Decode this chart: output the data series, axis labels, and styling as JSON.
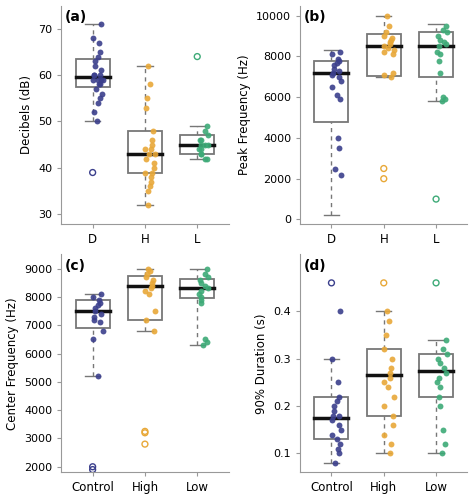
{
  "panel_a": {
    "title": "(a)",
    "ylabel": "Decibels (dB)",
    "xlabel_ticks": [
      "D",
      "H",
      "L"
    ],
    "ylim": [
      28,
      75
    ],
    "yticks": [
      30,
      40,
      50,
      60,
      70
    ],
    "groups": {
      "D": {
        "color": "#3B3F8C",
        "points": [
          71,
          68,
          67,
          65,
          64,
          63,
          62,
          61,
          60,
          60,
          60,
          59,
          59,
          59,
          59,
          58,
          58,
          57,
          56,
          55,
          54,
          52,
          50
        ],
        "q1": 57.5,
        "median": 59.5,
        "q3": 63.5,
        "whisker_low": 50,
        "whisker_high": 71,
        "outliers_low": [
          39
        ],
        "outliers_high": []
      },
      "H": {
        "color": "#E8A838",
        "points": [
          62,
          58,
          55,
          53,
          48,
          46,
          45,
          44,
          44,
          43,
          43,
          42,
          41,
          40,
          39,
          39,
          38,
          37,
          36,
          35,
          32
        ],
        "q1": 39,
        "median": 43,
        "q3": 48,
        "whisker_low": 32,
        "whisker_high": 62,
        "outliers_low": [],
        "outliers_high": []
      },
      "L": {
        "color": "#3DAA77",
        "points": [
          49,
          48,
          47,
          46,
          46,
          45,
          45,
          45,
          44,
          44,
          43,
          43,
          42,
          42
        ],
        "q1": 43,
        "median": 45,
        "q3": 47,
        "whisker_low": 42,
        "whisker_high": 49,
        "outliers_low": [],
        "outliers_high": [
          64
        ]
      }
    }
  },
  "panel_b": {
    "title": "(b)",
    "ylabel": "Peak Frequency (Hz)",
    "xlabel_ticks": [
      "D",
      "H",
      "L"
    ],
    "ylim": [
      -200,
      10500
    ],
    "yticks": [
      0,
      2000,
      4000,
      6000,
      8000,
      10000
    ],
    "groups": {
      "D": {
        "color": "#3B3F8C",
        "points": [
          8200,
          8100,
          7900,
          7800,
          7700,
          7600,
          7400,
          7300,
          7200,
          7100,
          7000,
          6800,
          6500,
          6100,
          5900,
          4000,
          3500,
          2500,
          2200
        ],
        "q1": 4800,
        "median": 7200,
        "q3": 7800,
        "whisker_low": 200,
        "whisker_high": 8300,
        "outliers_low": [],
        "outliers_high": []
      },
      "H": {
        "color": "#E8A838",
        "points": [
          10000,
          9500,
          9200,
          9000,
          8900,
          8800,
          8700,
          8600,
          8500,
          8400,
          8300,
          8200,
          8100,
          7200,
          7100,
          7000
        ],
        "q1": 7050,
        "median": 8500,
        "q3": 9100,
        "whisker_low": 7000,
        "whisker_high": 10000,
        "outliers_low": [
          2000,
          2500
        ],
        "outliers_high": []
      },
      "L": {
        "color": "#3DAA77",
        "points": [
          9500,
          9300,
          9200,
          9000,
          8800,
          8700,
          8600,
          8500,
          8200,
          8100,
          7800,
          7200,
          6000,
          5900,
          5800
        ],
        "q1": 7000,
        "median": 8500,
        "q3": 9200,
        "whisker_low": 5800,
        "whisker_high": 9600,
        "outliers_low": [
          1000
        ],
        "outliers_high": []
      }
    }
  },
  "panel_c": {
    "title": "(c)",
    "ylabel": "Center Frequency (Hz)",
    "xlabel_ticks": [
      "Control",
      "High",
      "Low"
    ],
    "ylim": [
      1800,
      9500
    ],
    "yticks": [
      2000,
      3000,
      4000,
      5000,
      6000,
      7000,
      8000,
      9000
    ],
    "groups": {
      "Control": {
        "color": "#3B3F8C",
        "points": [
          8100,
          8000,
          7900,
          7800,
          7700,
          7600,
          7500,
          7400,
          7300,
          7200,
          7100,
          6800,
          6500,
          5200
        ],
        "q1": 6900,
        "median": 7500,
        "q3": 7900,
        "whisker_low": 5200,
        "whisker_high": 8100,
        "outliers_low": [
          2000,
          1900
        ],
        "outliers_high": []
      },
      "High": {
        "color": "#E8A838",
        "points": [
          9000,
          8900,
          8800,
          8700,
          8600,
          8500,
          8400,
          8300,
          8200,
          8100,
          7500,
          7200,
          6800
        ],
        "q1": 7200,
        "median": 8400,
        "q3": 8750,
        "whisker_low": 6800,
        "whisker_high": 9000,
        "outliers_low": [
          3200,
          3250,
          2800
        ],
        "outliers_high": []
      },
      "Low": {
        "color": "#3DAA77",
        "points": [
          9000,
          8800,
          8700,
          8600,
          8500,
          8400,
          8300,
          8200,
          8100,
          8000,
          7900,
          7800,
          6500,
          6400,
          6300
        ],
        "q1": 7950,
        "median": 8300,
        "q3": 8650,
        "whisker_low": 6300,
        "whisker_high": 9000,
        "outliers_low": [],
        "outliers_high": []
      }
    }
  },
  "panel_d": {
    "title": "(d)",
    "ylabel": "90% Duration (s)",
    "xlabel_ticks": [
      "Control",
      "High",
      "Low"
    ],
    "ylim": [
      0.06,
      0.52
    ],
    "yticks": [
      0.1,
      0.2,
      0.3,
      0.4
    ],
    "groups": {
      "Control": {
        "color": "#3B3F8C",
        "points": [
          0.4,
          0.3,
          0.25,
          0.22,
          0.21,
          0.2,
          0.19,
          0.18,
          0.18,
          0.17,
          0.16,
          0.15,
          0.14,
          0.13,
          0.12,
          0.11,
          0.1,
          0.08
        ],
        "q1": 0.13,
        "median": 0.175,
        "q3": 0.22,
        "whisker_low": 0.08,
        "whisker_high": 0.3,
        "outliers_low": [],
        "outliers_high": [
          0.46
        ]
      },
      "High": {
        "color": "#E8A838",
        "points": [
          0.4,
          0.38,
          0.35,
          0.32,
          0.3,
          0.28,
          0.27,
          0.26,
          0.25,
          0.24,
          0.22,
          0.2,
          0.18,
          0.16,
          0.14,
          0.12,
          0.1
        ],
        "q1": 0.18,
        "median": 0.265,
        "q3": 0.32,
        "whisker_low": 0.1,
        "whisker_high": 0.4,
        "outliers_low": [],
        "outliers_high": [
          0.46
        ]
      },
      "Low": {
        "color": "#3DAA77",
        "points": [
          0.34,
          0.32,
          0.31,
          0.3,
          0.29,
          0.28,
          0.27,
          0.26,
          0.25,
          0.24,
          0.22,
          0.2,
          0.15,
          0.12,
          0.1
        ],
        "q1": 0.22,
        "median": 0.275,
        "q3": 0.31,
        "whisker_low": 0.1,
        "whisker_high": 0.34,
        "outliers_low": [],
        "outliers_high": [
          0.46
        ]
      }
    }
  },
  "bg_color": "#FFFFFF",
  "box_color": "#777777",
  "median_color": "#111111",
  "jitter_alpha": 0.9,
  "dot_size": 18
}
